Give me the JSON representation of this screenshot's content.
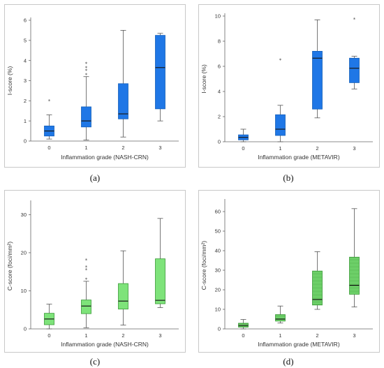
{
  "colors": {
    "blue": "#1f77e6",
    "blue_edge": "#155fb8",
    "green": "#7ee37a",
    "green_edge": "#3a9a37",
    "hatch": "#4caa47"
  },
  "panels": [
    {
      "caption": "(a)"
    },
    {
      "caption": "(b)"
    },
    {
      "caption": "(c)"
    },
    {
      "caption": "(d)"
    }
  ],
  "chart_data": [
    {
      "type": "box",
      "ylabel": "I-score (%)",
      "xlabel": "Inflammation grade (NASH-CRN)",
      "categories": [
        "0",
        "1",
        "2",
        "3"
      ],
      "ylim": [
        0,
        6
      ],
      "yticks": [
        0,
        1,
        2,
        3,
        4,
        5,
        6
      ],
      "fill": "solid",
      "color": "blue",
      "boxes": [
        {
          "whisker_low": 0.1,
          "q1": 0.25,
          "median": 0.5,
          "q3": 0.75,
          "whisker_high": 1.3,
          "outliers": [
            2.0
          ]
        },
        {
          "whisker_low": 0.05,
          "q1": 0.7,
          "median": 1.0,
          "q3": 1.7,
          "whisker_high": 3.2,
          "outliers": [
            3.3,
            3.5,
            3.65,
            3.85
          ]
        },
        {
          "whisker_low": 0.2,
          "q1": 1.1,
          "median": 1.35,
          "q3": 2.85,
          "whisker_high": 5.5,
          "outliers": []
        },
        {
          "whisker_low": 1.0,
          "q1": 1.6,
          "median": 3.65,
          "q3": 5.25,
          "whisker_high": 5.35,
          "outliers": []
        }
      ]
    },
    {
      "type": "box",
      "ylabel": "I-score (%)",
      "xlabel": "Inflammation grade (METAVIR)",
      "categories": [
        "0",
        "1",
        "2",
        "3"
      ],
      "ylim": [
        0,
        10
      ],
      "yticks": [
        0,
        2,
        4,
        6,
        8,
        10
      ],
      "fill": "solid",
      "color": "blue",
      "boxes": [
        {
          "whisker_low": 0.0,
          "q1": 0.15,
          "median": 0.35,
          "q3": 0.55,
          "whisker_high": 1.0,
          "outliers": []
        },
        {
          "whisker_low": 0.0,
          "q1": 0.5,
          "median": 1.0,
          "q3": 2.15,
          "whisker_high": 2.9,
          "outliers": [
            6.5
          ]
        },
        {
          "whisker_low": 1.9,
          "q1": 2.6,
          "median": 6.65,
          "q3": 7.2,
          "whisker_high": 9.7,
          "outliers": []
        },
        {
          "whisker_low": 4.2,
          "q1": 4.7,
          "median": 5.85,
          "q3": 6.65,
          "whisker_high": 6.8,
          "outliers": [
            9.75
          ]
        }
      ]
    },
    {
      "type": "box",
      "ylabel": "C-score (foci/mm²)",
      "xlabel": "Inflammation grade (NASH-CRN)",
      "categories": [
        "0",
        "1",
        "2",
        "3"
      ],
      "ylim": [
        0,
        33
      ],
      "yticks": [
        0,
        10,
        20,
        30
      ],
      "fill": "solid",
      "color": "green",
      "boxes": [
        {
          "whisker_low": 0.0,
          "q1": 1.1,
          "median": 2.6,
          "q3": 4.1,
          "whisker_high": 6.5,
          "outliers": []
        },
        {
          "whisker_low": 0.3,
          "q1": 4.0,
          "median": 6.0,
          "q3": 7.6,
          "whisker_high": 12.5,
          "outliers": [
            13.0,
            15.5,
            16.2,
            18.1
          ]
        },
        {
          "whisker_low": 1.0,
          "q1": 5.2,
          "median": 7.3,
          "q3": 11.9,
          "whisker_high": 20.5,
          "outliers": []
        },
        {
          "whisker_low": 5.6,
          "q1": 6.6,
          "median": 7.5,
          "q3": 18.4,
          "whisker_high": 29.0,
          "outliers": []
        }
      ]
    },
    {
      "type": "box",
      "ylabel": "C-score (foci/mm²)",
      "xlabel": "Inflammation grade (METAVIR)",
      "categories": [
        "0",
        "1",
        "2",
        "3"
      ],
      "ylim": [
        0,
        65
      ],
      "yticks": [
        0,
        10,
        20,
        30,
        40,
        50,
        60
      ],
      "fill": "hatched",
      "color": "green",
      "boxes": [
        {
          "whisker_low": 0.0,
          "q1": 0.9,
          "median": 1.8,
          "q3": 2.9,
          "whisker_high": 4.8,
          "outliers": []
        },
        {
          "whisker_low": 3.0,
          "q1": 4.0,
          "median": 5.0,
          "q3": 7.3,
          "whisker_high": 11.7,
          "outliers": []
        },
        {
          "whisker_low": 10.0,
          "q1": 12.2,
          "median": 15.0,
          "q3": 29.6,
          "whisker_high": 39.5,
          "outliers": []
        },
        {
          "whisker_low": 11.2,
          "q1": 17.7,
          "median": 22.3,
          "q3": 36.7,
          "whisker_high": 61.5,
          "outliers": []
        }
      ]
    }
  ]
}
